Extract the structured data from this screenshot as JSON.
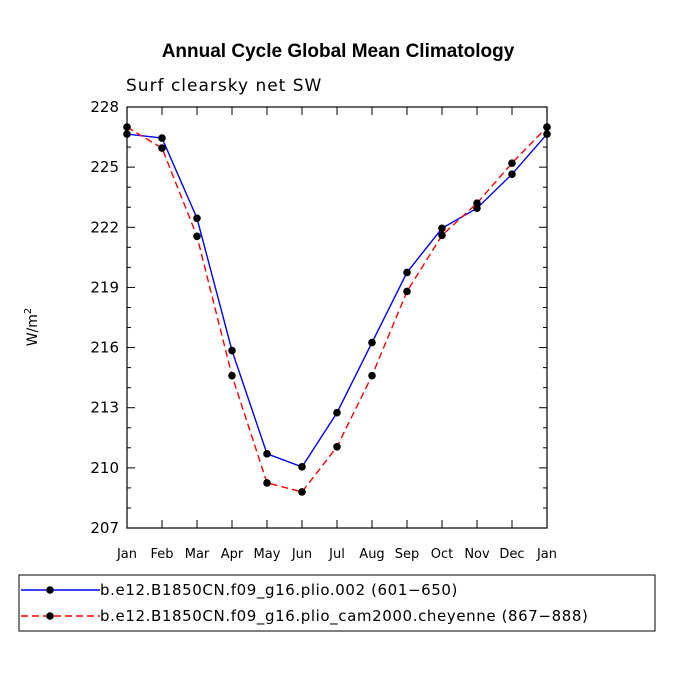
{
  "chart_data": {
    "type": "line",
    "title": "Annual Cycle Global Mean Climatology",
    "subtitle": "Surf clearsky net SW",
    "ylabel": "W/m",
    "ylabel_superscript": "2",
    "xlabel": "",
    "ylim": [
      207,
      228
    ],
    "yticks": [
      "228",
      "225",
      "222",
      "219",
      "216",
      "213",
      "210",
      "207"
    ],
    "categories": [
      "Jan",
      "Feb",
      "Mar",
      "Apr",
      "May",
      "Jun",
      "Jul",
      "Aug",
      "Sep",
      "Oct",
      "Nov",
      "Dec",
      "Jan"
    ],
    "series": [
      {
        "name": "b.e12.B1850CN.f09_g16.plio.002 (601−650)",
        "color": "#0000ff",
        "dash": "solid",
        "values": [
          226.65,
          226.45,
          222.45,
          215.85,
          210.7,
          210.05,
          212.75,
          216.25,
          219.75,
          221.95,
          222.95,
          224.65,
          226.65
        ]
      },
      {
        "name": "b.e12.B1850CN.f09_g16.plio_cam2000.cheyenne (867−888)",
        "color": "#ff0000",
        "dash": "dashed",
        "values": [
          227.0,
          225.95,
          221.55,
          214.6,
          209.25,
          208.8,
          211.05,
          214.6,
          218.8,
          221.6,
          223.2,
          225.2,
          227.0
        ]
      }
    ]
  }
}
